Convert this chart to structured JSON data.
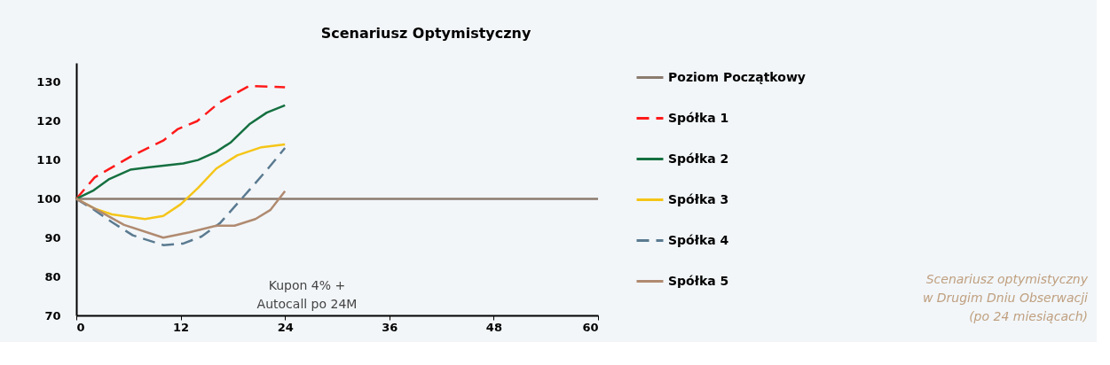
{
  "chart_data": {
    "type": "line",
    "title": "Scenariusz Optymistyczny",
    "xlim": [
      0,
      60
    ],
    "xticks": [
      0,
      12,
      24,
      36,
      48,
      60
    ],
    "ylim": [
      70,
      135
    ],
    "yticks": [
      70,
      80,
      90,
      100,
      110,
      120,
      130
    ],
    "grid": false,
    "legend": "right",
    "marker": "none",
    "series": [
      {
        "name": "Poziom Początkowy",
        "color": "#8b7b6e",
        "line_style": "solid",
        "x": [
          0,
          60
        ],
        "values": [
          100,
          100
        ]
      },
      {
        "name": "Spółka 1",
        "color": "#ff1a1a",
        "line_style": "dashed",
        "x": [
          0,
          2.1,
          6.5,
          10,
          11.7,
          13.9,
          16.5,
          19.9,
          24
        ],
        "values": [
          100,
          105.5,
          111.2,
          115,
          118,
          120,
          124.9,
          129.1,
          128.7
        ]
      },
      {
        "name": "Spółka 2",
        "color": "#157040",
        "line_style": "solid",
        "x": [
          0,
          2,
          3.8,
          6.2,
          8.2,
          12.3,
          14,
          16.1,
          17.8,
          19.9,
          21.9,
          24
        ],
        "values": [
          100,
          102.2,
          105.1,
          107.5,
          108.1,
          109.1,
          110,
          112.1,
          114.6,
          119.2,
          122.2,
          124.1
        ]
      },
      {
        "name": "Spółka 3",
        "color": "#f5c518",
        "line_style": "solid",
        "x": [
          0,
          2.1,
          4.1,
          7.9,
          10,
          12,
          14,
          16.1,
          18.5,
          21.3,
          24
        ],
        "values": [
          100,
          97.5,
          96,
          94.8,
          95.6,
          98.6,
          102.8,
          107.8,
          111.2,
          113.3,
          114
        ]
      },
      {
        "name": "Spółka 4",
        "color": "#5a7a90",
        "line_style": "dashed",
        "x": [
          0,
          2.1,
          4.1,
          6.5,
          10,
          12.3,
          14.4,
          16.5,
          19.2,
          21.9,
          24
        ],
        "values": [
          100,
          97.1,
          94,
          90.6,
          88.1,
          88.5,
          90.3,
          93.7,
          100.5,
          107.4,
          113.1
        ]
      },
      {
        "name": "Spółka 5",
        "color": "#b08a70",
        "line_style": "solid",
        "x": [
          0,
          2.1,
          5.5,
          10,
          13,
          16.1,
          18.2,
          20.6,
          22.3,
          24
        ],
        "values": [
          100,
          97.5,
          93.3,
          90,
          91.4,
          93.1,
          93.1,
          94.8,
          97.1,
          102
        ]
      }
    ],
    "annotations": [
      "Kupon 4% +\nAutocall po 24M",
      "Scenariusz optymistyczny\nw Drugim Dniu Obserwacji\n(po 24 miesiącach)"
    ]
  }
}
